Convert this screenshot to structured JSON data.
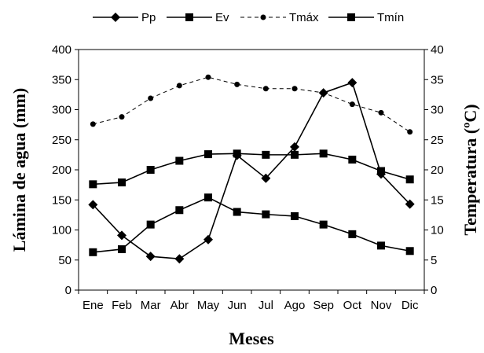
{
  "chart_data": {
    "type": "line",
    "categories": [
      "Ene",
      "Feb",
      "Mar",
      "Abr",
      "May",
      "Jun",
      "Jul",
      "Ago",
      "Sep",
      "Oct",
      "Nov",
      "Dic"
    ],
    "xlabel": "Meses",
    "ylabel_left": "Lámina de agua (mm)",
    "ylabel_right": "Temperatura (ºC)",
    "ylim_left": [
      0,
      400
    ],
    "ylim_right": [
      0,
      40
    ],
    "yticks_left": [
      "0",
      "50",
      "100",
      "150",
      "200",
      "250",
      "300",
      "350",
      "400"
    ],
    "yticks_right": [
      "0",
      "5",
      "10",
      "15",
      "20",
      "25",
      "30",
      "35",
      "40"
    ],
    "grid": false,
    "legend_position": "top",
    "series": [
      {
        "name": "Pp",
        "axis": "left",
        "marker": "diamond",
        "line": "solid",
        "values": [
          142,
          91,
          56,
          52,
          84,
          224,
          186,
          238,
          328,
          345,
          193,
          143
        ]
      },
      {
        "name": "Ev",
        "axis": "left",
        "marker": "square",
        "line": "solid",
        "values": [
          63,
          68,
          109,
          133,
          154,
          130,
          126,
          123,
          109,
          93,
          74,
          65
        ]
      },
      {
        "name": "Tmáx",
        "axis": "right",
        "marker": "circle",
        "line": "dashed",
        "values": [
          27.6,
          28.8,
          31.9,
          34.0,
          35.4,
          34.2,
          33.5,
          33.5,
          32.8,
          30.9,
          29.5,
          26.3
        ]
      },
      {
        "name": "Tmín",
        "axis": "right",
        "marker": "square",
        "line": "solid",
        "values": [
          17.6,
          17.9,
          20.0,
          21.5,
          22.6,
          22.7,
          22.5,
          22.5,
          22.7,
          21.7,
          19.8,
          18.4
        ]
      }
    ]
  }
}
